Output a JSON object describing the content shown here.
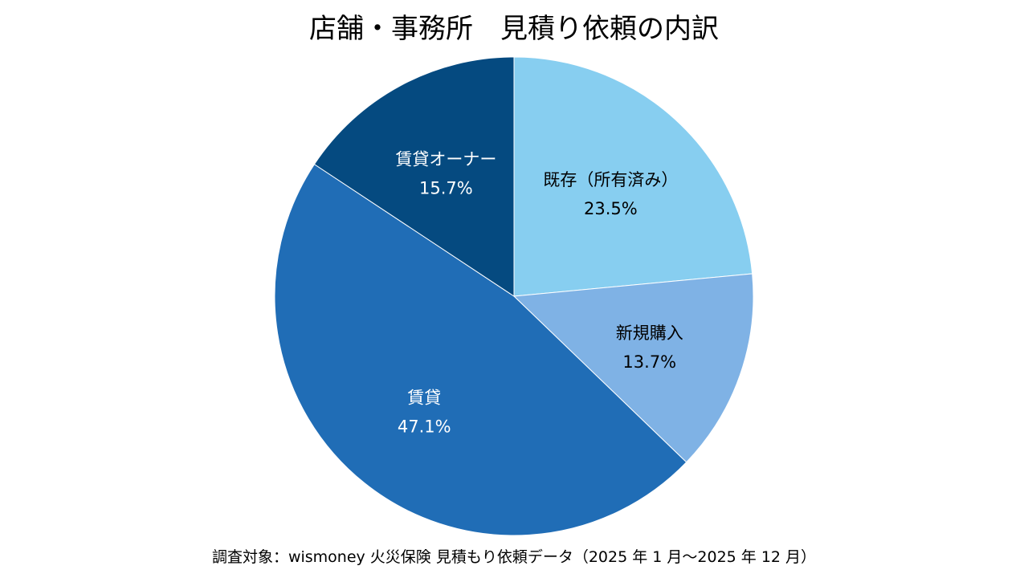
{
  "title": "店舗・事務所　見積り依頼の内訳",
  "source": "調査対象：wismoney 火災保険 見積もり依頼データ（2025 年 1 月～2025 年 12 月）",
  "chart_data": {
    "type": "pie",
    "title": "店舗・事務所　見積り依頼の内訳",
    "start": "12 o'clock",
    "direction": "clockwise",
    "slices": [
      {
        "label": "既存（所有済み）",
        "value": 23.5,
        "value_label": "23.5%",
        "color": "#87CEF0",
        "text_color": "#000000"
      },
      {
        "label": "新規購入",
        "value": 13.7,
        "value_label": "13.7%",
        "color": "#7FB2E5",
        "text_color": "#000000"
      },
      {
        "label": "賃貸",
        "value": 47.1,
        "value_label": "47.1%",
        "color": "#206DB6",
        "text_color": "#ffffff"
      },
      {
        "label": "賃貸オーナー",
        "value": 15.7,
        "value_label": "15.7%",
        "color": "#054A80",
        "text_color": "#ffffff"
      }
    ]
  }
}
